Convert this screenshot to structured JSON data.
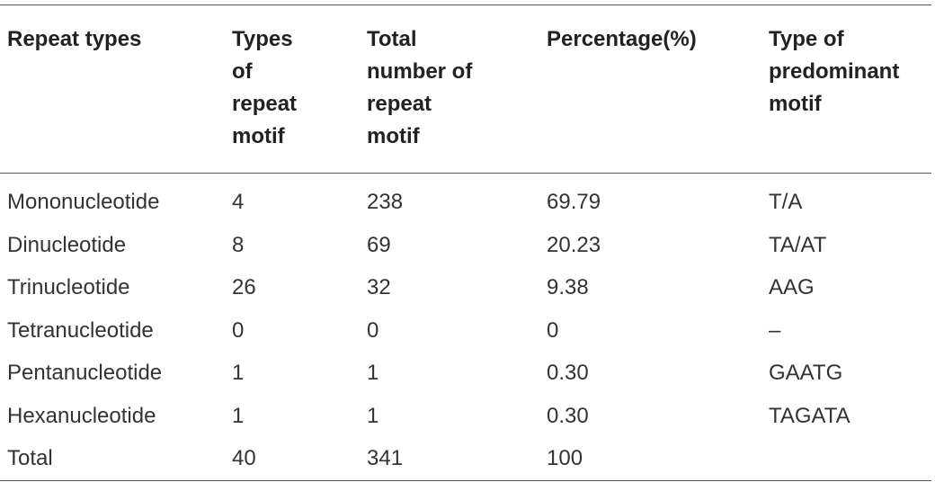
{
  "table": {
    "headers": [
      "Repeat types",
      "Types of repeat motif",
      "Total number of repeat motif",
      "Percentage(%)",
      "Type of predominant motif"
    ],
    "rows": [
      [
        "Mononucleotide",
        "4",
        "238",
        "69.79",
        "T/A"
      ],
      [
        "Dinucleotide",
        "8",
        "69",
        "20.23",
        "TA/AT"
      ],
      [
        "Trinucleotide",
        "26",
        "32",
        "9.38",
        "AAG"
      ],
      [
        "Tetranucleotide",
        "0",
        "0",
        "0",
        "–"
      ],
      [
        "Pentanucleotide",
        "1",
        "1",
        "0.30",
        "GAATG"
      ],
      [
        "Hexanucleotide",
        "1",
        "1",
        "0.30",
        "TAGATA"
      ],
      [
        "Total",
        "40",
        "341",
        "100",
        ""
      ]
    ]
  }
}
